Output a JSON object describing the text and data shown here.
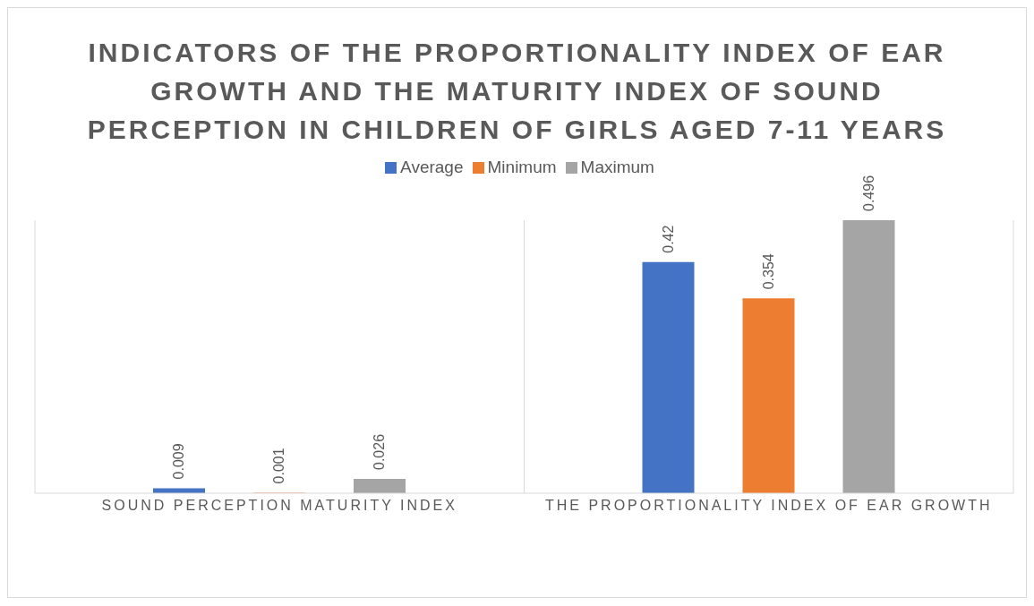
{
  "chart_data": {
    "type": "bar",
    "title": "INDICATORS OF THE PROPORTIONALITY INDEX OF EAR GROWTH AND THE MATURITY INDEX OF SOUND PERCEPTION IN CHILDREN OF GIRLS AGED 7-11 YEARS",
    "categories": [
      "SOUND PERCEPTION MATURITY INDEX",
      "THE PROPORTIONALITY INDEX OF EAR GROWTH"
    ],
    "series": [
      {
        "name": "Average",
        "color": "#4472c4",
        "values": [
          0.009,
          0.42
        ]
      },
      {
        "name": "Minimum",
        "color": "#ed7d31",
        "values": [
          0.001,
          0.354
        ]
      },
      {
        "name": "Maximum",
        "color": "#a5a5a5",
        "values": [
          0.026,
          0.496
        ]
      }
    ],
    "data_labels": true,
    "legend": "top",
    "grid": "x"
  }
}
